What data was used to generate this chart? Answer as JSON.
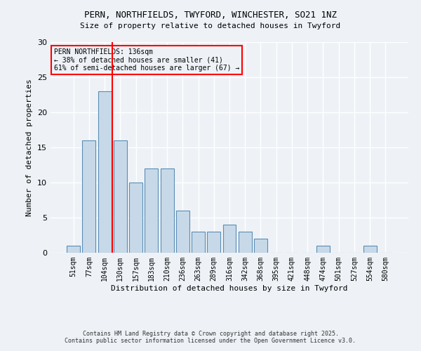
{
  "title1": "PERN, NORTHFIELDS, TWYFORD, WINCHESTER, SO21 1NZ",
  "title2": "Size of property relative to detached houses in Twyford",
  "xlabel": "Distribution of detached houses by size in Twyford",
  "ylabel": "Number of detached properties",
  "categories": [
    "51sqm",
    "77sqm",
    "104sqm",
    "130sqm",
    "157sqm",
    "183sqm",
    "210sqm",
    "236sqm",
    "263sqm",
    "289sqm",
    "316sqm",
    "342sqm",
    "368sqm",
    "395sqm",
    "421sqm",
    "448sqm",
    "474sqm",
    "501sqm",
    "527sqm",
    "554sqm",
    "580sqm"
  ],
  "values": [
    1,
    16,
    23,
    16,
    10,
    12,
    12,
    6,
    3,
    3,
    4,
    3,
    2,
    0,
    0,
    0,
    1,
    0,
    0,
    1,
    0
  ],
  "bar_color": "#c7d9e8",
  "bar_edge_color": "#5a8db5",
  "vline_index": 3,
  "vline_color": "red",
  "annotation_title": "PERN NORTHFIELDS: 136sqm",
  "annotation_line1": "← 38% of detached houses are smaller (41)",
  "annotation_line2": "61% of semi-detached houses are larger (67) →",
  "ylim": [
    0,
    30
  ],
  "yticks": [
    0,
    5,
    10,
    15,
    20,
    25,
    30
  ],
  "background_color": "#eef2f7",
  "grid_color": "#ffffff",
  "footer1": "Contains HM Land Registry data © Crown copyright and database right 2025.",
  "footer2": "Contains public sector information licensed under the Open Government Licence v3.0."
}
